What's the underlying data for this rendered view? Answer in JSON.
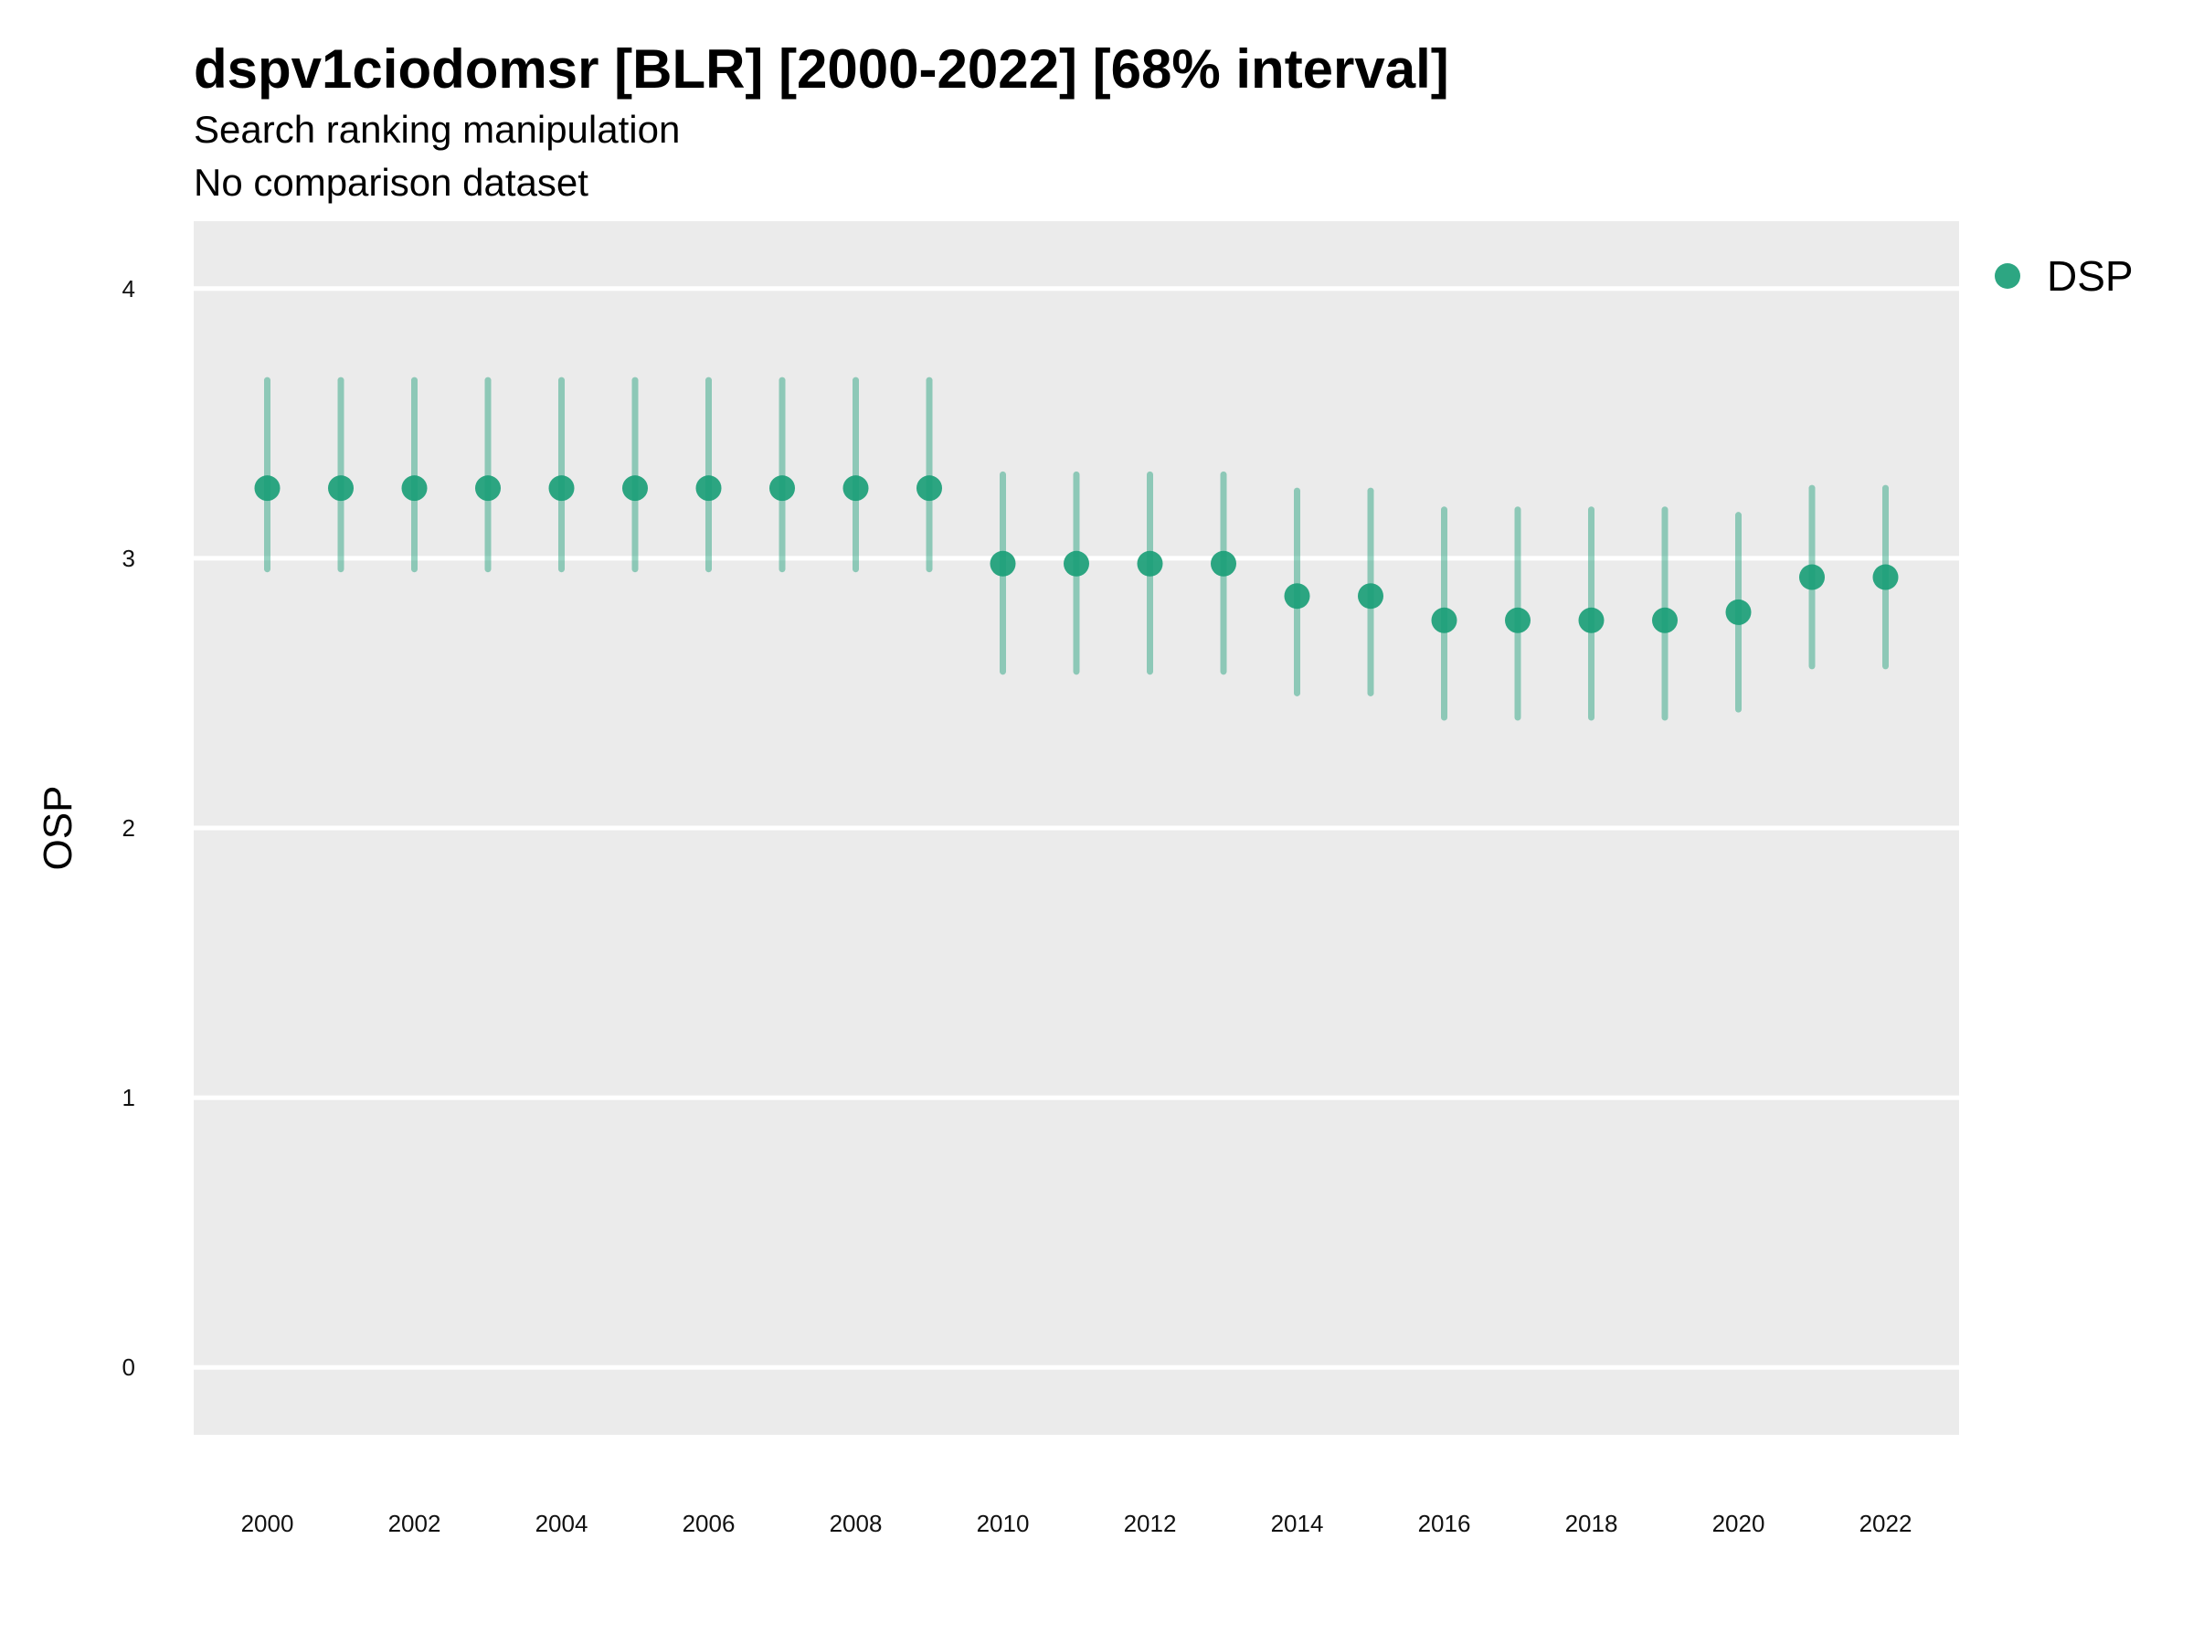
{
  "title": "dspv1ciodomsr [BLR] [2000-2022] [68% interval]",
  "subtitle": "Search ranking manipulation",
  "subtitle2": "No comparison dataset",
  "colors": {
    "panel": "#ebebeb",
    "grid": "#ffffff",
    "point": "#1b9e77"
  },
  "chart_data": {
    "type": "scatter",
    "title": "dspv1ciodomsr [BLR] [2000-2022] [68% interval]",
    "xlabel": "",
    "ylabel": "OSP",
    "xlim": [
      1999.0,
      2023.0
    ],
    "ylim": [
      -0.25,
      4.25
    ],
    "x_ticks": [
      2000,
      2002,
      2004,
      2006,
      2008,
      2010,
      2012,
      2014,
      2016,
      2018,
      2020,
      2022
    ],
    "y_ticks": [
      0,
      1,
      2,
      3,
      4
    ],
    "grid": true,
    "legend_position": "top-right",
    "series": [
      {
        "name": "DSP",
        "x": [
          2000,
          2001,
          2002,
          2003,
          2004,
          2005,
          2006,
          2007,
          2008,
          2009,
          2010,
          2011,
          2012,
          2013,
          2014,
          2015,
          2016,
          2017,
          2018,
          2019,
          2020,
          2021,
          2022
        ],
        "y": [
          3.26,
          3.26,
          3.26,
          3.26,
          3.26,
          3.26,
          3.26,
          3.26,
          3.26,
          3.26,
          2.98,
          2.98,
          2.98,
          2.98,
          2.86,
          2.86,
          2.77,
          2.77,
          2.77,
          2.77,
          2.8,
          2.93,
          2.93
        ],
        "lower": [
          2.96,
          2.96,
          2.96,
          2.96,
          2.96,
          2.96,
          2.96,
          2.96,
          2.96,
          2.96,
          2.58,
          2.58,
          2.58,
          2.58,
          2.5,
          2.5,
          2.41,
          2.41,
          2.41,
          2.41,
          2.44,
          2.6,
          2.6
        ],
        "upper": [
          3.66,
          3.66,
          3.66,
          3.66,
          3.66,
          3.66,
          3.66,
          3.66,
          3.66,
          3.66,
          3.31,
          3.31,
          3.31,
          3.31,
          3.25,
          3.25,
          3.18,
          3.18,
          3.18,
          3.18,
          3.16,
          3.26,
          3.26
        ]
      }
    ]
  }
}
